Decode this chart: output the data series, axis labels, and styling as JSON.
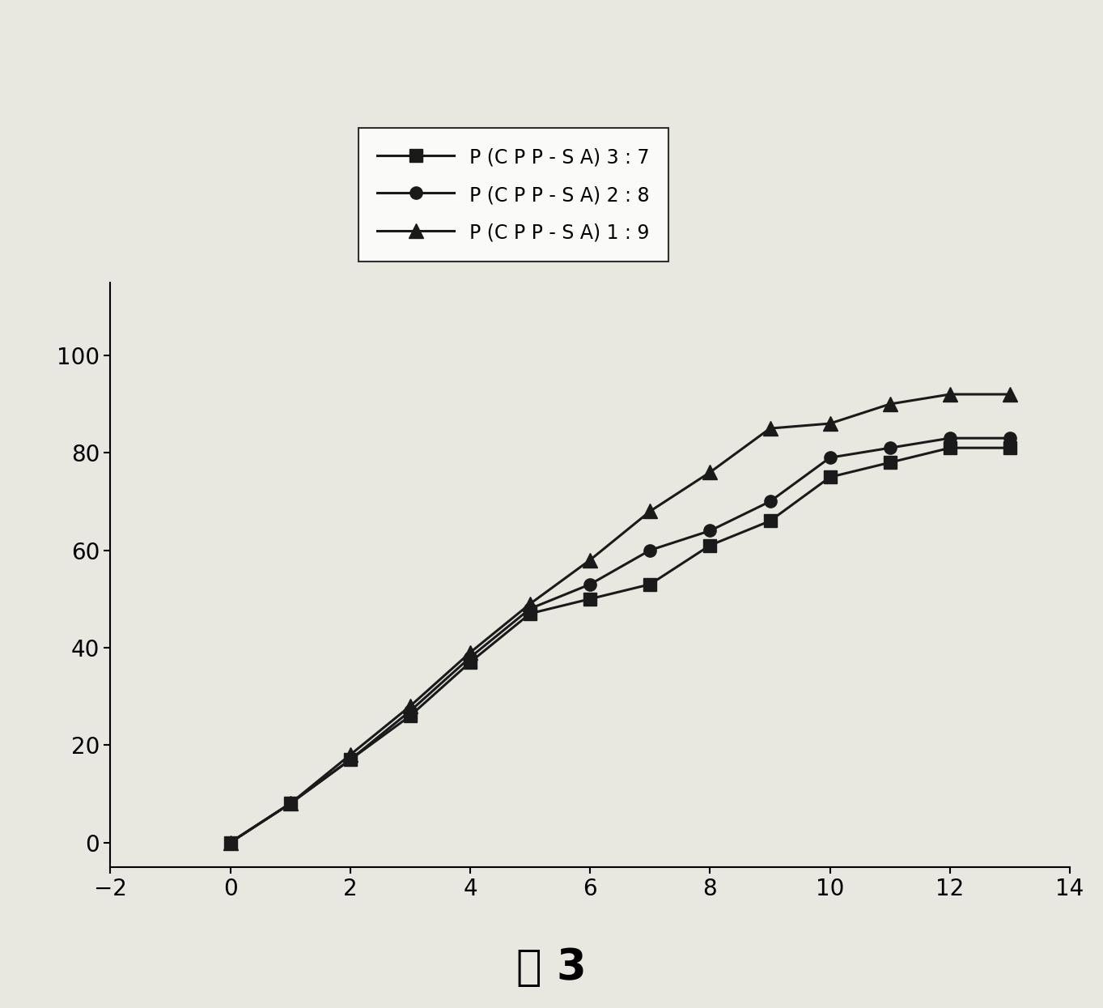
{
  "series": [
    {
      "label": "P (C P P - S A) 3 : 7",
      "marker": "s",
      "x": [
        0,
        1,
        2,
        3,
        4,
        5,
        6,
        7,
        8,
        9,
        10,
        11,
        12,
        13
      ],
      "y": [
        0,
        8,
        17,
        26,
        37,
        47,
        50,
        53,
        61,
        66,
        75,
        78,
        81,
        81
      ]
    },
    {
      "label": "P (C P P - S A) 2 : 8",
      "marker": "o",
      "x": [
        0,
        1,
        2,
        3,
        4,
        5,
        6,
        7,
        8,
        9,
        10,
        11,
        12,
        13
      ],
      "y": [
        0,
        8,
        17,
        27,
        38,
        48,
        53,
        60,
        64,
        70,
        79,
        81,
        83,
        83
      ]
    },
    {
      "label": "P (C P P - S A) 1 : 9",
      "marker": "^",
      "x": [
        0,
        1,
        2,
        3,
        4,
        5,
        6,
        7,
        8,
        9,
        10,
        11,
        12,
        13
      ],
      "y": [
        0,
        8,
        18,
        28,
        39,
        49,
        58,
        68,
        76,
        85,
        86,
        90,
        92,
        92
      ]
    }
  ],
  "xlim": [
    -2,
    14
  ],
  "ylim": [
    -5,
    115
  ],
  "xticks": [
    -2,
    0,
    2,
    4,
    6,
    8,
    10,
    12,
    14
  ],
  "yticks": [
    0,
    20,
    40,
    60,
    80,
    100
  ],
  "line_color": "#1a1a1a",
  "background_color": "#e8e8e0",
  "legend_fontsize": 17,
  "tick_fontsize": 20,
  "caption": "图 3",
  "caption_fontsize": 38,
  "figsize": [
    13.63,
    12.45
  ],
  "dpi": 100
}
